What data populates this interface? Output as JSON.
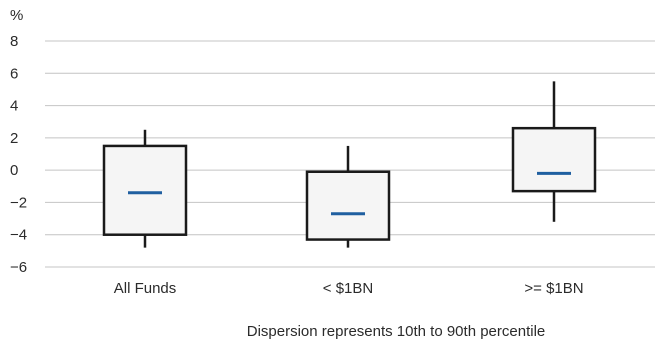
{
  "chart_data": {
    "type": "box",
    "title": "",
    "ylabel": "%",
    "xlabel": "",
    "ylim": [
      -6,
      8
    ],
    "yticks": [
      {
        "value": 8,
        "label": "8"
      },
      {
        "value": 6,
        "label": "6"
      },
      {
        "value": 4,
        "label": "4"
      },
      {
        "value": 2,
        "label": "2"
      },
      {
        "value": 0,
        "label": "0"
      },
      {
        "value": -2,
        "label": "-2"
      },
      {
        "value": -4,
        "label": "-4"
      },
      {
        "value": -6,
        "label": "-6"
      }
    ],
    "grid": true,
    "categories": [
      "All Funds",
      "< $1BN",
      ">= $1BN"
    ],
    "boxes": [
      {
        "category": "All Funds",
        "whisker_low": -4.8,
        "q1": -4.0,
        "median": -1.4,
        "q3": 1.5,
        "whisker_high": 2.5
      },
      {
        "category": "< $1BN",
        "whisker_low": -4.8,
        "q1": -4.3,
        "median": -2.7,
        "q3": -0.1,
        "whisker_high": 1.5
      },
      {
        "category": ">= $1BN",
        "whisker_low": -3.2,
        "q1": -1.3,
        "median": -0.2,
        "q3": 2.6,
        "whisker_high": 5.5
      }
    ],
    "caption": "Dispersion represents 10th to 90th percentile",
    "colors": {
      "box_fill": "#f5f5f5",
      "box_stroke": "#1a1a1a",
      "median": "#1f5fa0",
      "grid": "#c4c4c4",
      "text": "#2b2b2b"
    }
  }
}
